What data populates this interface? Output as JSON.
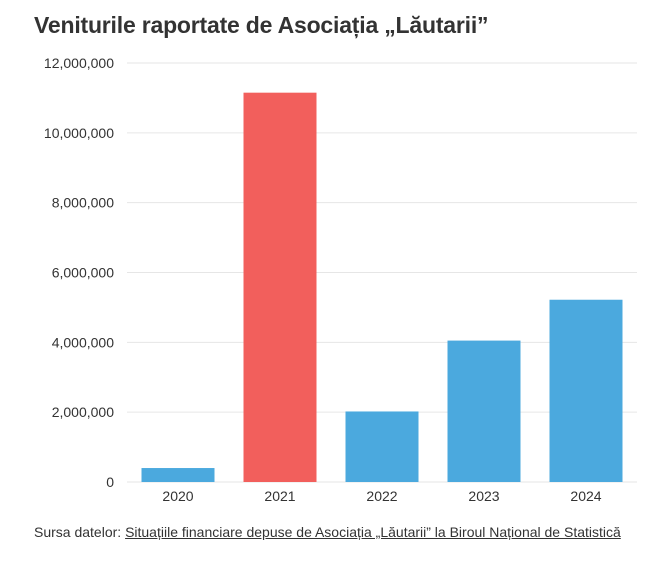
{
  "title": "Veniturile raportate de Asociația „Lăutarii”",
  "source": {
    "prefix": "Sursa datelor: ",
    "link_text": "Situațiile financiare depuse de Asociația „Lăutarii” la Biroul Național de Statistică"
  },
  "colors": {
    "default_bar": "#4ba9de",
    "highlight_bar": "#f25f5c",
    "grid": "#e6e6e6",
    "text": "#333333"
  },
  "chart_data": {
    "type": "bar",
    "title": "Veniturile raportate de Asociația „Lăutarii”",
    "xlabel": "",
    "ylabel": "",
    "categories": [
      "2020",
      "2021",
      "2022",
      "2023",
      "2024"
    ],
    "values": [
      400000,
      11150000,
      2020000,
      4050000,
      5220000
    ],
    "highlight": [
      false,
      true,
      false,
      false,
      false
    ],
    "ylim": [
      0,
      12000000
    ],
    "yticks": [
      0,
      2000000,
      4000000,
      6000000,
      8000000,
      10000000,
      12000000
    ],
    "ytick_labels": [
      "0",
      "2,000,000",
      "4,000,000",
      "6,000,000",
      "8,000,000",
      "10,000,000",
      "12,000,000"
    ],
    "grid": true,
    "legend": "none"
  }
}
